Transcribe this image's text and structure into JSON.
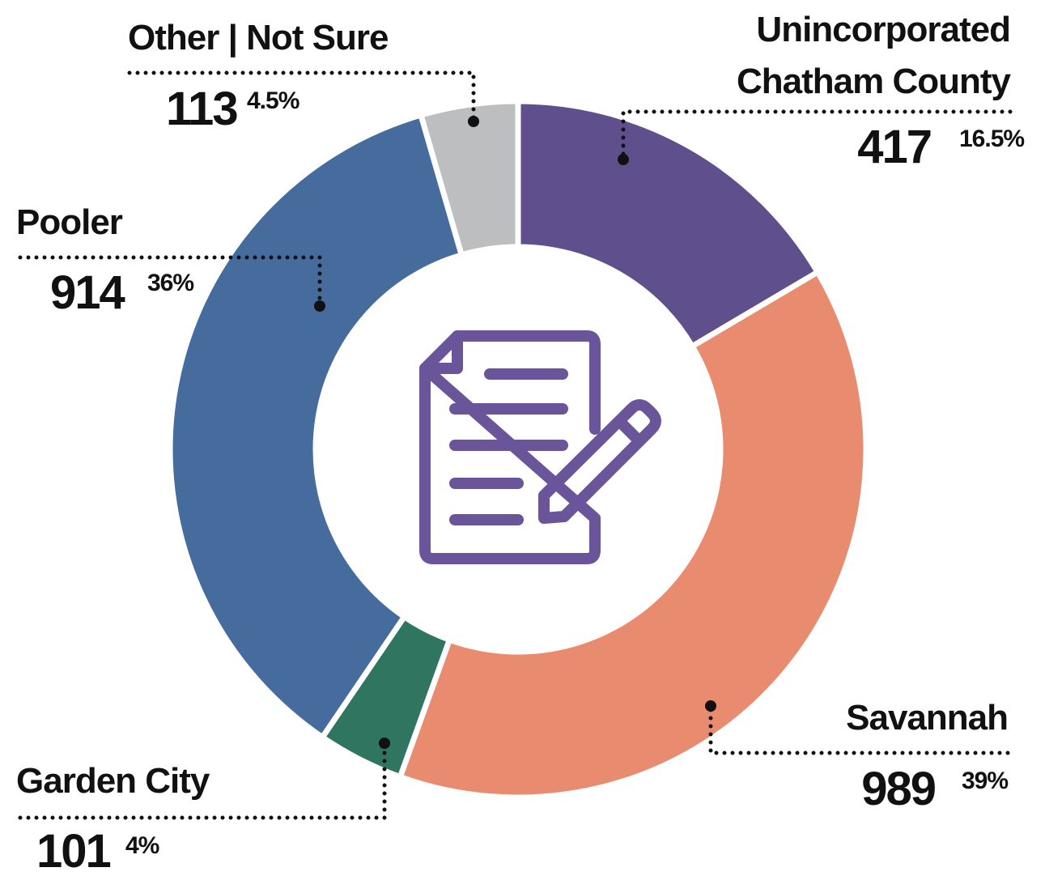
{
  "chart_data": {
    "type": "donut",
    "categories": [
      "Unincorporated Chatham County",
      "Savannah",
      "Garden City",
      "Pooler",
      "Other | Not Sure"
    ],
    "counts": [
      417,
      989,
      101,
      914,
      113
    ],
    "values": [
      16.5,
      39,
      4,
      36,
      4.5
    ],
    "value_labels": [
      "16.5%",
      "39%",
      "4%",
      "36%",
      "4.5%"
    ],
    "colors": [
      "#5f4f8c",
      "#e98b6e",
      "#2f7560",
      "#456c9d",
      "#bdbec0"
    ]
  }
}
